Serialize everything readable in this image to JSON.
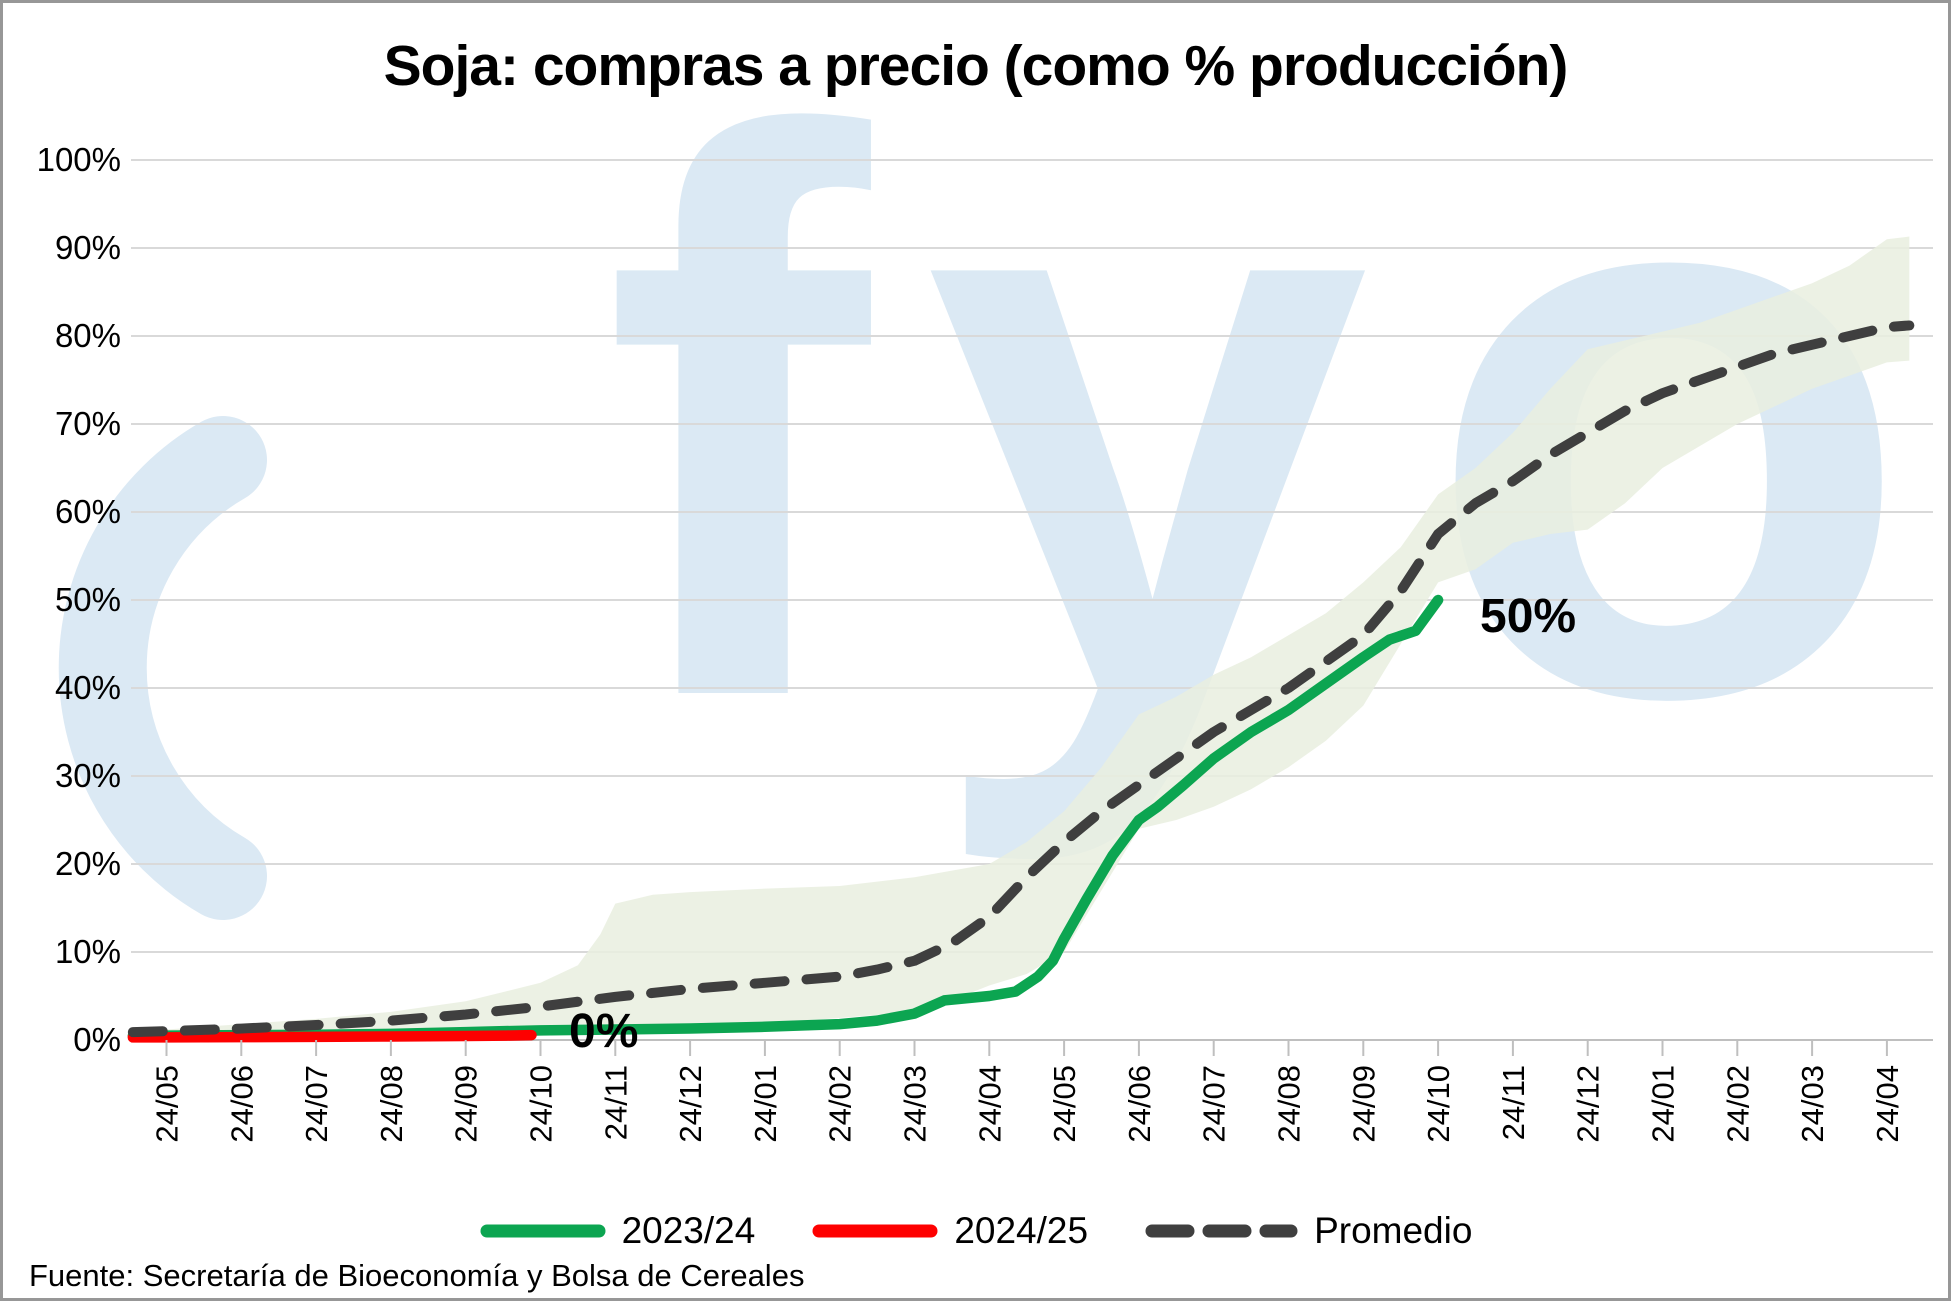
{
  "title": "Soja: compras a precio (como % producción)",
  "source": "Fuente: Secretaría de Bioeconomía y Bolsa de Cereales",
  "watermark": {
    "text": "fyo",
    "color": "#dbe9f4"
  },
  "legend": [
    {
      "label": "2023/24",
      "color": "#0ca551",
      "style": "solid"
    },
    {
      "label": "2024/25",
      "color": "#fe0000",
      "style": "solid"
    },
    {
      "label": "Promedio",
      "color": "#3f3f3f",
      "style": "dashed"
    }
  ],
  "chart_data": {
    "type": "line",
    "title": "Soja: compras a precio (como % producción)",
    "xlabel": "",
    "ylabel": "",
    "ylim": [
      0,
      100
    ],
    "grid": true,
    "legend_position": "bottom",
    "colors": {
      "gridline": "#d9d9d9",
      "axis": "#bfbfbf",
      "band": "#e9efdf"
    },
    "y_ticks": [
      "0%",
      "10%",
      "20%",
      "30%",
      "40%",
      "50%",
      "60%",
      "70%",
      "80%",
      "90%",
      "100%"
    ],
    "x_labels": [
      "24/05",
      "24/06",
      "24/07",
      "24/08",
      "24/09",
      "24/10",
      "24/11",
      "24/12",
      "24/01",
      "24/02",
      "24/03",
      "24/04",
      "24/05",
      "24/06",
      "24/07",
      "24/08",
      "24/09",
      "24/10",
      "24/11",
      "24/12",
      "24/01",
      "24/02",
      "24/03",
      "24/04"
    ],
    "annotations": {
      "red_end": "0%",
      "green_end": "50%"
    },
    "series": [
      {
        "name": "2023/24",
        "color": "#0ca551",
        "style": "solid",
        "points": [
          [
            -0.45,
            0.5
          ],
          [
            0,
            0.5
          ],
          [
            1,
            0.55
          ],
          [
            2,
            0.6
          ],
          [
            3,
            0.7
          ],
          [
            4,
            0.9
          ],
          [
            5,
            1.1
          ],
          [
            6,
            1.2
          ],
          [
            7,
            1.3
          ],
          [
            8,
            1.5
          ],
          [
            9,
            1.8
          ],
          [
            9.5,
            2.2
          ],
          [
            10,
            3.0
          ],
          [
            10.4,
            4.5
          ],
          [
            11,
            5.0
          ],
          [
            11.35,
            5.5
          ],
          [
            11.65,
            7.2
          ],
          [
            11.85,
            9.0
          ],
          [
            12,
            11.5
          ],
          [
            12.3,
            16
          ],
          [
            12.65,
            21
          ],
          [
            13,
            25
          ],
          [
            13.25,
            26.5
          ],
          [
            13.6,
            29
          ],
          [
            14,
            32
          ],
          [
            14.5,
            35
          ],
          [
            15,
            37.5
          ],
          [
            15.5,
            40.5
          ],
          [
            16,
            43.5
          ],
          [
            16.35,
            45.5
          ],
          [
            16.7,
            46.5
          ],
          [
            17,
            50
          ]
        ]
      },
      {
        "name": "2024/25",
        "color": "#fe0000",
        "style": "solid",
        "points": [
          [
            -0.45,
            0.3
          ],
          [
            0,
            0.3
          ],
          [
            1,
            0.32
          ],
          [
            2,
            0.35
          ],
          [
            3,
            0.4
          ],
          [
            4,
            0.45
          ],
          [
            4.55,
            0.5
          ],
          [
            4.88,
            0.55
          ]
        ]
      },
      {
        "name": "Promedio",
        "color": "#3f3f3f",
        "style": "dashed",
        "points": [
          [
            -0.45,
            0.9
          ],
          [
            0,
            1.0
          ],
          [
            1,
            1.3
          ],
          [
            2,
            1.7
          ],
          [
            3,
            2.2
          ],
          [
            4,
            2.9
          ],
          [
            5,
            3.8
          ],
          [
            6,
            4.9
          ],
          [
            7,
            5.8
          ],
          [
            8,
            6.5
          ],
          [
            9,
            7.2
          ],
          [
            9.5,
            8.0
          ],
          [
            10,
            9.0
          ],
          [
            10.5,
            11.0
          ],
          [
            11,
            14.0
          ],
          [
            11.5,
            18.5
          ],
          [
            12,
            22.5
          ],
          [
            12.5,
            26.0
          ],
          [
            13,
            29.0
          ],
          [
            13.5,
            32.0
          ],
          [
            14,
            35.0
          ],
          [
            14.5,
            37.5
          ],
          [
            15,
            40.0
          ],
          [
            15.5,
            43.0
          ],
          [
            16,
            46.0
          ],
          [
            16.5,
            51.0
          ],
          [
            17,
            57.5
          ],
          [
            17.5,
            61.0
          ],
          [
            18,
            63.5
          ],
          [
            18.5,
            66.5
          ],
          [
            19,
            69.0
          ],
          [
            19.5,
            71.5
          ],
          [
            20,
            73.5
          ],
          [
            20.5,
            75.0
          ],
          [
            21,
            76.5
          ],
          [
            21.5,
            78.0
          ],
          [
            22,
            79.0
          ],
          [
            22.5,
            80.0
          ],
          [
            23,
            81.0
          ],
          [
            23.3,
            81.2
          ]
        ]
      }
    ],
    "band": {
      "name": "rango min-max historico",
      "color": "#e9efdf",
      "upper": [
        [
          -0.45,
          1.1
        ],
        [
          0,
          1.2
        ],
        [
          1,
          1.8
        ],
        [
          2,
          2.4
        ],
        [
          3,
          3.2
        ],
        [
          4,
          4.4
        ],
        [
          5,
          6.5
        ],
        [
          5.5,
          8.5
        ],
        [
          5.8,
          12.0
        ],
        [
          6,
          15.5
        ],
        [
          6.5,
          16.5
        ],
        [
          7,
          16.8
        ],
        [
          8,
          17.2
        ],
        [
          9,
          17.5
        ],
        [
          10,
          18.5
        ],
        [
          11,
          20.0
        ],
        [
          11.5,
          22.5
        ],
        [
          12,
          26.0
        ],
        [
          12.5,
          31.0
        ],
        [
          13,
          37.0
        ],
        [
          13.5,
          39.0
        ],
        [
          14,
          41.5
        ],
        [
          14.5,
          43.5
        ],
        [
          15,
          46.0
        ],
        [
          15.5,
          48.5
        ],
        [
          16,
          52.0
        ],
        [
          16.5,
          56.0
        ],
        [
          17,
          62.0
        ],
        [
          17.5,
          65.0
        ],
        [
          18,
          69.0
        ],
        [
          18.5,
          74.0
        ],
        [
          19,
          78.5
        ],
        [
          19.5,
          79.5
        ],
        [
          20,
          80.5
        ],
        [
          20.5,
          81.5
        ],
        [
          21,
          83.0
        ],
        [
          21.5,
          84.5
        ],
        [
          22,
          86.0
        ],
        [
          22.5,
          88.0
        ],
        [
          23,
          91.0
        ],
        [
          23.3,
          91.3
        ]
      ],
      "lower": [
        [
          -0.45,
          0.05
        ],
        [
          0,
          0.05
        ],
        [
          1,
          0.1
        ],
        [
          2,
          0.15
        ],
        [
          3,
          0.2
        ],
        [
          4,
          0.3
        ],
        [
          5,
          0.5
        ],
        [
          6,
          0.9
        ],
        [
          7,
          1.3
        ],
        [
          8,
          1.9
        ],
        [
          9,
          2.5
        ],
        [
          10,
          3.2
        ],
        [
          10.5,
          4.5
        ],
        [
          11,
          6.2
        ],
        [
          11.5,
          7.5
        ],
        [
          12,
          10.0
        ],
        [
          12.5,
          17.0
        ],
        [
          13,
          24.0
        ],
        [
          13.5,
          25.0
        ],
        [
          14,
          26.5
        ],
        [
          14.5,
          28.5
        ],
        [
          15,
          31.0
        ],
        [
          15.5,
          34.0
        ],
        [
          16,
          38.0
        ],
        [
          16.5,
          45.0
        ],
        [
          17,
          52.0
        ],
        [
          17.5,
          53.5
        ],
        [
          18,
          56.5
        ],
        [
          18.5,
          57.5
        ],
        [
          19,
          58.0
        ],
        [
          19.5,
          61.0
        ],
        [
          20,
          65.0
        ],
        [
          20.5,
          67.5
        ],
        [
          21,
          70.0
        ],
        [
          21.5,
          72.0
        ],
        [
          22,
          74.0
        ],
        [
          22.5,
          75.5
        ],
        [
          23,
          77.0
        ],
        [
          23.3,
          77.2
        ]
      ]
    }
  }
}
